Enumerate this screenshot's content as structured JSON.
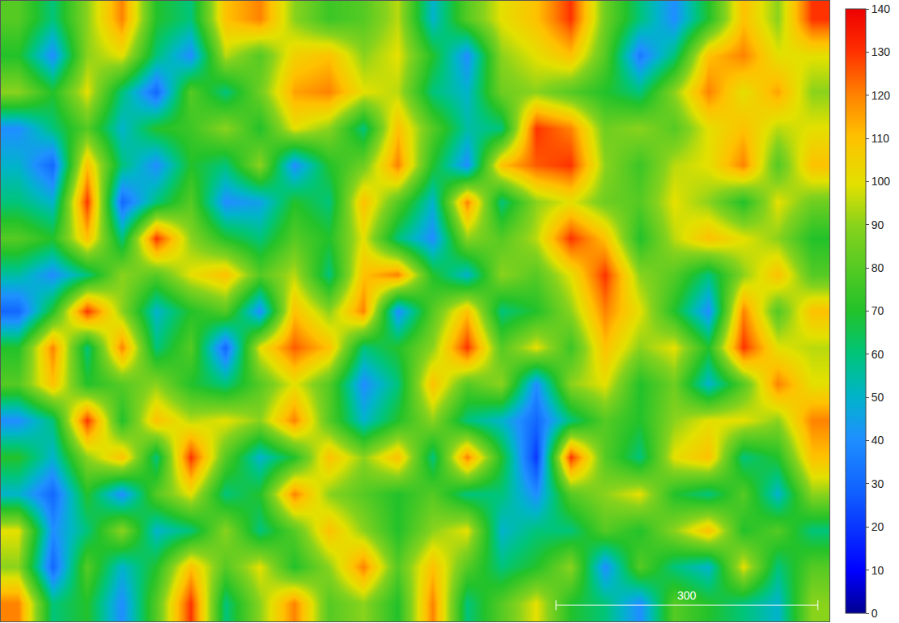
{
  "chart_data": {
    "type": "heatmap",
    "z": [
      [
        80,
        60,
        90,
        120,
        70,
        60,
        110,
        120,
        90,
        75,
        80,
        95,
        50,
        80,
        100,
        110,
        130,
        85,
        60,
        40,
        70,
        110,
        90,
        130
      ],
      [
        70,
        40,
        90,
        100,
        60,
        40,
        95,
        80,
        105,
        110,
        90,
        100,
        70,
        40,
        90,
        100,
        110,
        80,
        35,
        60,
        110,
        120,
        100,
        100
      ],
      [
        90,
        70,
        100,
        60,
        30,
        80,
        60,
        85,
        115,
        120,
        100,
        95,
        60,
        50,
        85,
        90,
        80,
        70,
        60,
        90,
        120,
        100,
        115,
        90
      ],
      [
        40,
        60,
        80,
        50,
        70,
        75,
        90,
        70,
        100,
        90,
        60,
        110,
        80,
        55,
        60,
        130,
        120,
        85,
        90,
        80,
        100,
        110,
        95,
        100
      ],
      [
        50,
        30,
        110,
        60,
        40,
        70,
        60,
        90,
        40,
        70,
        85,
        120,
        70,
        40,
        110,
        125,
        130,
        90,
        75,
        95,
        100,
        120,
        80,
        110
      ],
      [
        60,
        50,
        130,
        30,
        60,
        80,
        40,
        45,
        70,
        60,
        110,
        80,
        50,
        120,
        60,
        90,
        100,
        85,
        80,
        100,
        90,
        70,
        100,
        85
      ],
      [
        80,
        70,
        110,
        60,
        130,
        90,
        70,
        60,
        80,
        70,
        100,
        60,
        40,
        90,
        80,
        95,
        130,
        110,
        70,
        95,
        110,
        100,
        90,
        70
      ],
      [
        55,
        40,
        60,
        90,
        80,
        100,
        110,
        80,
        95,
        60,
        110,
        120,
        70,
        50,
        90,
        80,
        100,
        130,
        90,
        80,
        60,
        90,
        110,
        80
      ],
      [
        30,
        70,
        130,
        90,
        50,
        70,
        80,
        40,
        110,
        90,
        120,
        40,
        80,
        110,
        60,
        70,
        90,
        120,
        100,
        70,
        40,
        120,
        80,
        110
      ],
      [
        70,
        120,
        60,
        120,
        60,
        80,
        30,
        100,
        125,
        110,
        60,
        70,
        90,
        130,
        80,
        100,
        75,
        110,
        90,
        100,
        70,
        130,
        100,
        95
      ],
      [
        80,
        110,
        70,
        80,
        90,
        70,
        60,
        80,
        100,
        80,
        40,
        60,
        110,
        80,
        90,
        40,
        90,
        100,
        70,
        85,
        50,
        80,
        120,
        100
      ],
      [
        40,
        60,
        130,
        70,
        110,
        95,
        100,
        90,
        120,
        80,
        50,
        70,
        90,
        60,
        50,
        30,
        60,
        80,
        70,
        90,
        100,
        100,
        90,
        120
      ],
      [
        70,
        50,
        90,
        110,
        60,
        130,
        80,
        50,
        70,
        110,
        90,
        110,
        60,
        120,
        70,
        20,
        130,
        80,
        60,
        100,
        110,
        60,
        70,
        110
      ],
      [
        50,
        30,
        70,
        40,
        80,
        100,
        60,
        70,
        120,
        90,
        80,
        70,
        80,
        60,
        60,
        40,
        80,
        90,
        100,
        70,
        60,
        80,
        50,
        90
      ],
      [
        100,
        40,
        60,
        90,
        50,
        60,
        90,
        60,
        80,
        110,
        90,
        70,
        90,
        100,
        50,
        60,
        60,
        80,
        70,
        90,
        110,
        70,
        80,
        60
      ],
      [
        90,
        30,
        80,
        50,
        70,
        110,
        80,
        100,
        70,
        90,
        120,
        80,
        110,
        80,
        60,
        70,
        90,
        40,
        80,
        60,
        50,
        100,
        60,
        80
      ],
      [
        120,
        60,
        70,
        40,
        80,
        130,
        60,
        90,
        120,
        80,
        90,
        70,
        120,
        60,
        80,
        100,
        70,
        60,
        40,
        80,
        70,
        60,
        50,
        90
      ]
    ],
    "xlim": [
      0,
      949
    ],
    "ylim": [
      0,
      711
    ],
    "tick_labels": false,
    "colorbar": {
      "range": [
        0,
        140
      ],
      "ticks": [
        0,
        10,
        20,
        30,
        40,
        50,
        60,
        70,
        80,
        90,
        100,
        110,
        120,
        130,
        140
      ]
    },
    "scale_bar": {
      "length": 300,
      "label": "300"
    }
  }
}
